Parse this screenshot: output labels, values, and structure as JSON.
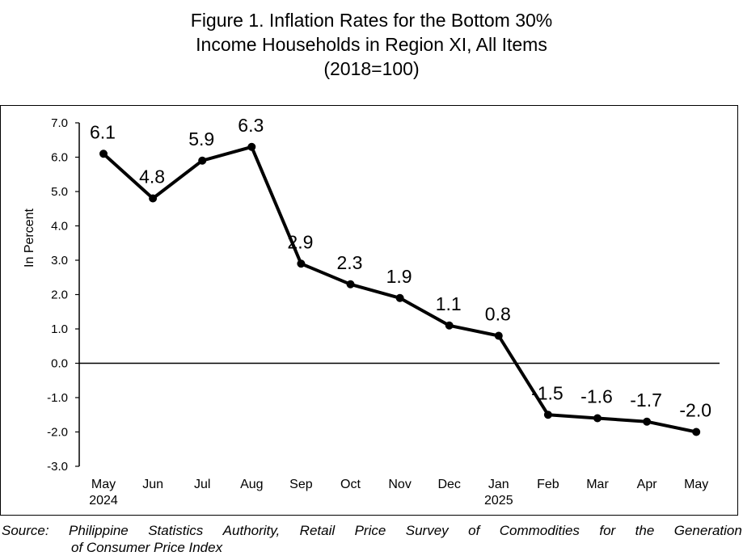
{
  "title_lines": [
    "Figure 1. Inflation Rates for the Bottom 30%",
    "Income Households in Region XI, All Items",
    "(2018=100)"
  ],
  "source": {
    "line1": "Source: Philippine Statistics Authority, Retail Price Survey of Commodities for the Generation",
    "line2": "of Consumer Price Index"
  },
  "chart_data": {
    "type": "line",
    "title": "Figure 1. Inflation Rates for the Bottom 30% Income Households in Region XI, All Items (2018=100)",
    "categories": [
      [
        "May",
        "2024"
      ],
      [
        "Jun"
      ],
      [
        "Jul"
      ],
      [
        "Aug"
      ],
      [
        "Sep"
      ],
      [
        "Oct"
      ],
      [
        "Nov"
      ],
      [
        "Dec"
      ],
      [
        "Jan",
        "2025"
      ],
      [
        "Feb"
      ],
      [
        "Mar"
      ],
      [
        "Apr"
      ],
      [
        "May"
      ]
    ],
    "series": [
      {
        "values": [
          6.1,
          4.8,
          5.9,
          6.3,
          2.9,
          2.3,
          1.9,
          1.1,
          0.8,
          -1.5,
          -1.6,
          -1.7,
          -2.0
        ],
        "labels": [
          "6.1",
          "4.8",
          "5.9",
          "6.3",
          "2.9",
          "2.3",
          "1.9",
          "1.1",
          "0.8",
          "-1.5",
          "-1.6",
          "-1.7",
          "-2.0"
        ],
        "color": "#000000"
      }
    ],
    "ylabel": "In Percent",
    "xlabel": "",
    "ylim": [
      -3.0,
      7.0
    ],
    "yticks": [
      "7.0",
      "6.0",
      "5.0",
      "4.0",
      "3.0",
      "2.0",
      "1.0",
      "0.0",
      "-1.0",
      "-2.0",
      "-3.0"
    ],
    "grid": false,
    "legend": "none"
  }
}
